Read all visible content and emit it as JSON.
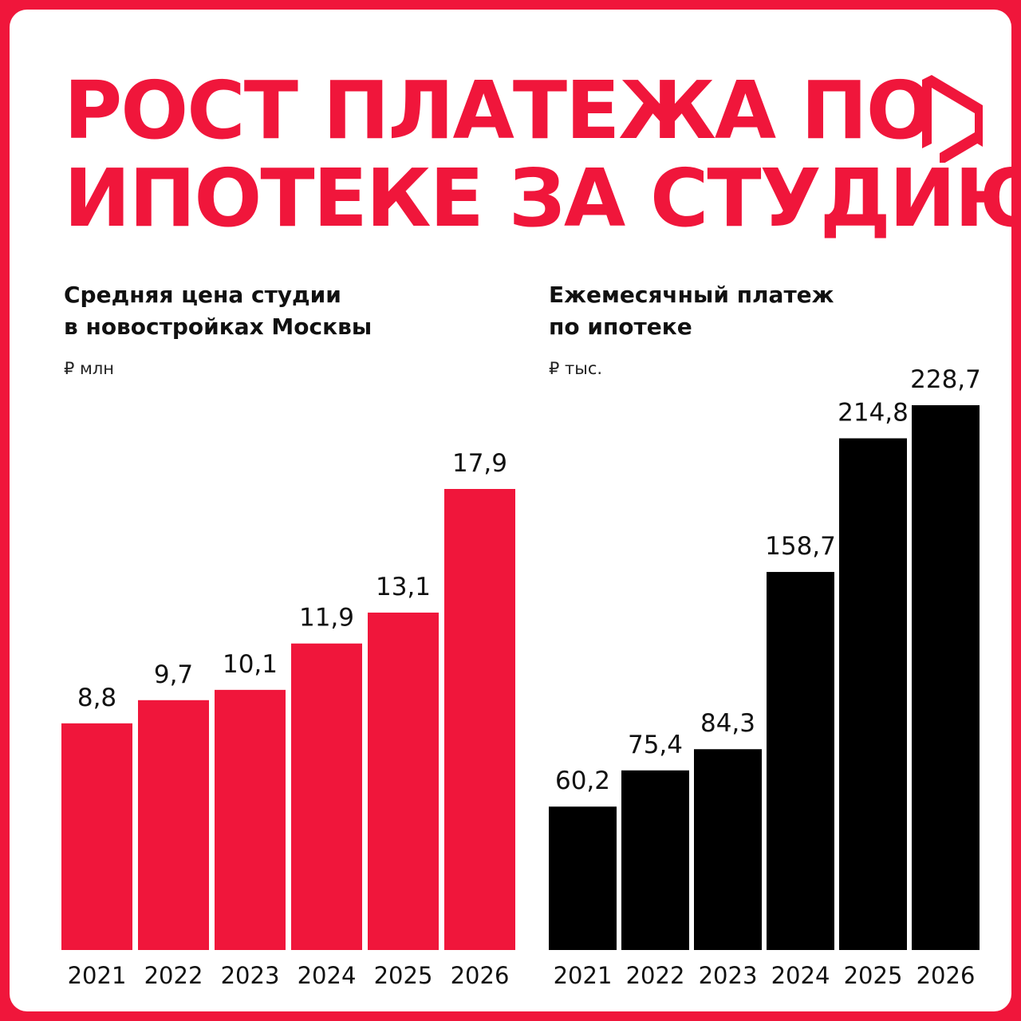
{
  "colors": {
    "accent": "#f0163b",
    "dark": "#000000",
    "background": "#ffffff"
  },
  "header": {
    "title_line1": "РОСТ ПЛАТЕЖА ПО",
    "title_line2": "ИПОТЕКЕ ЗА СТУДИЮ",
    "logo_icon": "brand-logo-icon"
  },
  "chart_data": [
    {
      "type": "bar",
      "title_line1": "Средняя цена студии",
      "title_line2": "в новостройках Москвы",
      "unit": "₽ млн",
      "categories": [
        "2021",
        "2022",
        "2023",
        "2024",
        "2025",
        "2026"
      ],
      "values": [
        8.8,
        9.7,
        10.1,
        11.9,
        13.1,
        17.9
      ],
      "value_labels": [
        "8,8",
        "9,7",
        "10,1",
        "11,9",
        "13,1",
        "17,9"
      ],
      "color": "#f0163b",
      "ylim": [
        0,
        17.9
      ],
      "grid": false,
      "legend": "none"
    },
    {
      "type": "bar",
      "title_line1": "Ежемесячный платеж",
      "title_line2": "по ипотеке",
      "unit": "₽ тыс.",
      "categories": [
        "2021",
        "2022",
        "2023",
        "2024",
        "2025",
        "2026"
      ],
      "values": [
        60.2,
        75.4,
        84.3,
        158.7,
        214.8,
        228.7
      ],
      "value_labels": [
        "60,2",
        "75,4",
        "84,3",
        "158,7",
        "214,8",
        "228,7"
      ],
      "color": "#000000",
      "ylim": [
        0,
        228.7
      ],
      "grid": false,
      "legend": "none"
    }
  ]
}
